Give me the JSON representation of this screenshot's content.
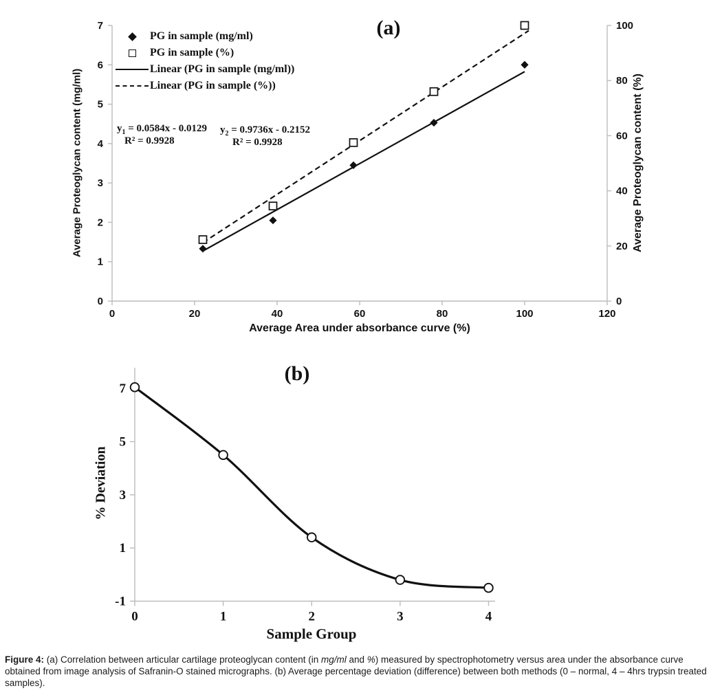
{
  "colors": {
    "ink": "#111111",
    "axis": "#bcbcbc",
    "marker_fill": "#ffffff"
  },
  "chart_data": [
    {
      "type": "scatter",
      "panel_label": "(a)",
      "xlabel": "Average Area under absorbance curve (%)",
      "ylabel_left": "Average Proteoglycan content (mg/ml)",
      "ylabel_right": "Average Proteoglycan content (%)",
      "xlim": [
        0,
        120
      ],
      "xticks": [
        0,
        20,
        40,
        60,
        80,
        100,
        120
      ],
      "ylim_left": [
        0,
        7
      ],
      "yticks_left": [
        0,
        1,
        2,
        3,
        4,
        5,
        6,
        7
      ],
      "ylim_right": [
        0,
        100
      ],
      "yticks_right": [
        0,
        20,
        40,
        60,
        80,
        100
      ],
      "x": [
        22,
        39,
        58.5,
        78,
        100
      ],
      "series": [
        {
          "name": "PG in sample (mg/ml)",
          "axis": "left",
          "marker": "filled-diamond",
          "values": [
            1.33,
            2.05,
            3.45,
            4.53,
            6.0
          ],
          "trendline": {
            "label": "Linear (PG in sample (mg/ml))",
            "slope": 0.0584,
            "intercept": -0.0129,
            "style": "solid",
            "x_range": [
              22,
              100
            ]
          }
        },
        {
          "name": "PG in sample (%)",
          "axis": "right",
          "marker": "open-square",
          "values": [
            22.3,
            34.5,
            57.5,
            76,
            100
          ],
          "trendline": {
            "label": "Linear (PG in sample (%))",
            "slope": 0.9736,
            "intercept": -0.2152,
            "style": "dashed",
            "x_range": [
              22,
              101
            ]
          }
        }
      ],
      "legend": [
        {
          "label": "PG in sample (mg/ml)",
          "marker": "filled-diamond"
        },
        {
          "label": "PG in sample (%)",
          "marker": "open-square"
        },
        {
          "label": "Linear (PG in sample (mg/ml))",
          "marker": "solid-line"
        },
        {
          "label": "Linear (PG in sample (%))",
          "marker": "dashed-line"
        }
      ],
      "equations": [
        {
          "lhs": "y",
          "sub": "1",
          "rhs": " = 0.0584x - 0.0129",
          "r2": "R² = 0.9928"
        },
        {
          "lhs": "y",
          "sub": "2",
          "rhs": " = 0.9736x - 0.2152",
          "r2": "R² = 0.9928"
        }
      ],
      "legend_position": "top-left-inside",
      "grid": false
    },
    {
      "type": "line",
      "panel_label": "(b)",
      "xlabel": "Sample Group",
      "ylabel": "% Deviation",
      "xlim": [
        0,
        4
      ],
      "xticks": [
        0,
        1,
        2,
        3,
        4
      ],
      "ylim": [
        -1,
        7.8
      ],
      "yticks": [
        -1,
        1,
        3,
        5,
        7
      ],
      "x": [
        0,
        1,
        2,
        3,
        4
      ],
      "values": [
        7.05,
        4.5,
        1.4,
        -0.2,
        -0.5
      ],
      "marker": "open-circle",
      "smooth": true,
      "grid": false
    }
  ],
  "caption": {
    "segments": [
      {
        "text": "Figure 4: ",
        "bold": true
      },
      {
        "text": "(a) Correlation between articular cartilage proteoglycan content (in "
      },
      {
        "text": "mg/ml",
        "italic": true
      },
      {
        "text": " and "
      },
      {
        "text": "%",
        "italic": true
      },
      {
        "text": ") measured by spectrophotometry versus area under the absorbance curve obtained from image analysis of Safranin-O stained micrographs. (b) Average percentage deviation (difference) between both methods (0 – normal, 4 – 4hrs trypsin treated samples)."
      }
    ]
  }
}
